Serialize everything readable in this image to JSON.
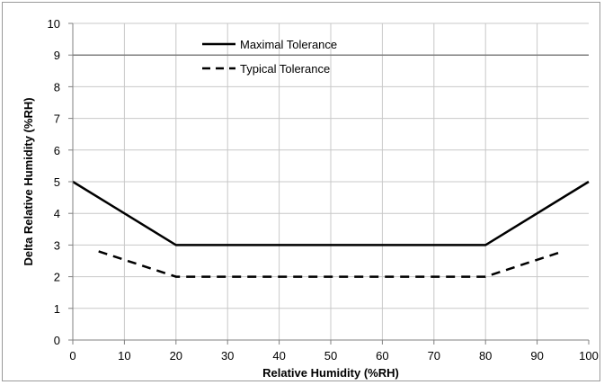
{
  "chart_data": {
    "type": "line",
    "xlabel": "Relative Humidity (%RH)",
    "ylabel": "Delta Relative Humidity (%RH)",
    "xlim": [
      0,
      100
    ],
    "ylim": [
      0,
      10
    ],
    "xticks": [
      "0",
      "10",
      "20",
      "30",
      "40",
      "50",
      "60",
      "70",
      "80",
      "90",
      "100"
    ],
    "yticks": [
      "0",
      "1",
      "2",
      "3",
      "4",
      "5",
      "6",
      "7",
      "8",
      "9",
      "10"
    ],
    "grid": true,
    "legend_position": "top-center",
    "reference_line": {
      "y": 9,
      "color": "#808080"
    },
    "series": [
      {
        "name": "Maximal Tolerance",
        "style": "solid",
        "color": "#000000",
        "x": [
          0,
          20,
          80,
          100
        ],
        "y": [
          5,
          3,
          3,
          5
        ]
      },
      {
        "name": "Typical Tolerance",
        "style": "dashed",
        "color": "#000000",
        "x": [
          5,
          20,
          80,
          95
        ],
        "y": [
          2.8,
          2,
          2,
          2.8
        ]
      }
    ]
  }
}
